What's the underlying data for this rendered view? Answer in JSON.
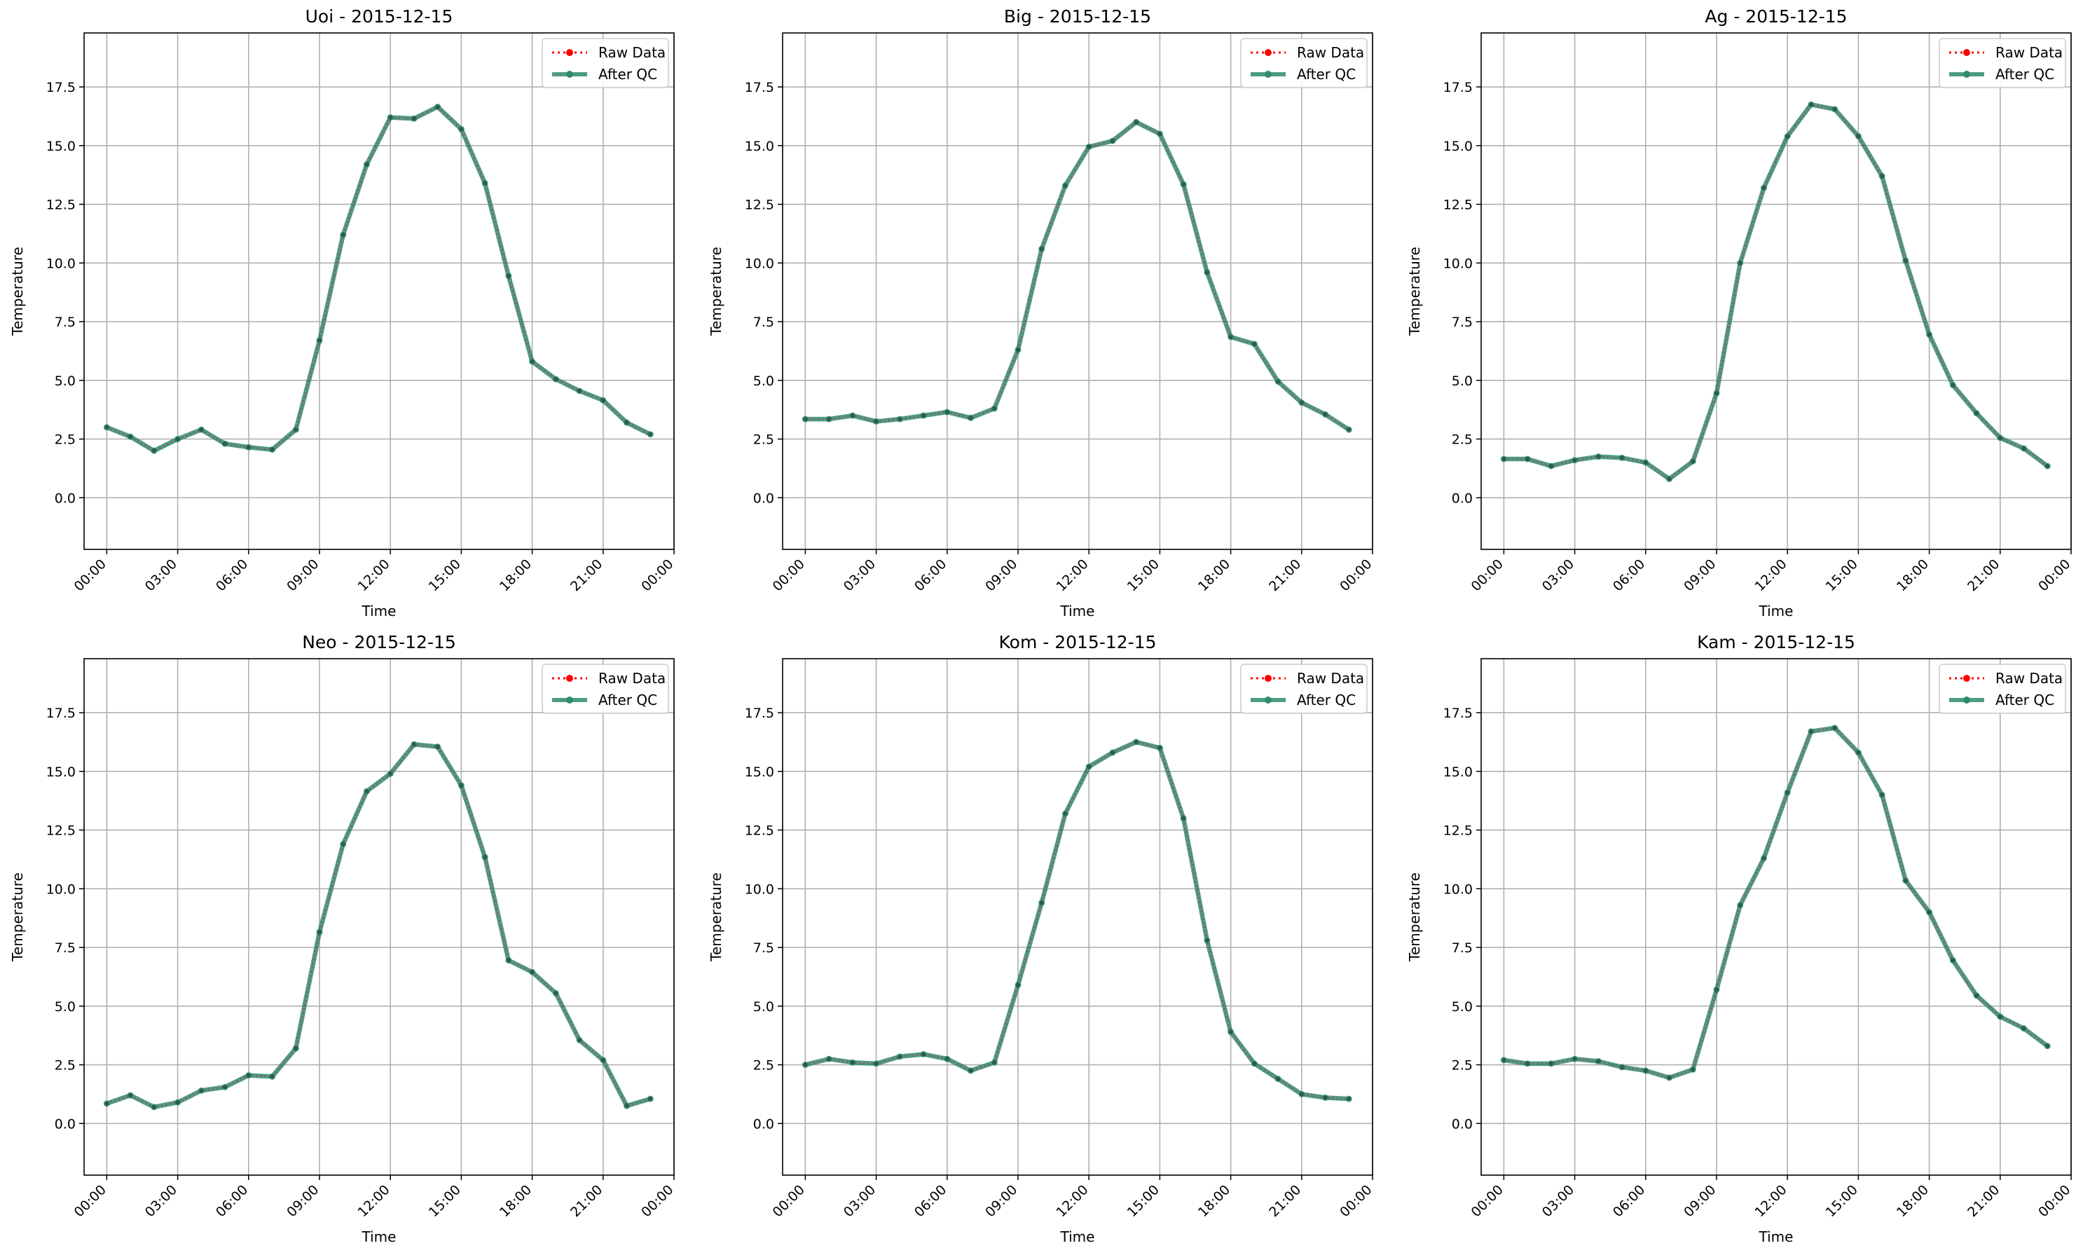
{
  "figure": {
    "colors": {
      "raw": "#ff0000",
      "qc": "#2e8b6e",
      "grid": "#b0b0b0"
    }
  },
  "chart_data": [
    {
      "type": "line",
      "title": "Uoi - 2015-12-15",
      "xlabel": "Time",
      "ylabel": "Temperature",
      "x": [
        "00:00",
        "01:00",
        "02:00",
        "03:00",
        "04:00",
        "05:00",
        "06:00",
        "07:00",
        "08:00",
        "09:00",
        "10:00",
        "11:00",
        "12:00",
        "13:00",
        "14:00",
        "15:00",
        "16:00",
        "17:00",
        "18:00",
        "19:00",
        "20:00",
        "21:00",
        "22:00",
        "23:00"
      ],
      "xticks": [
        "00:00",
        "03:00",
        "06:00",
        "09:00",
        "12:00",
        "15:00",
        "18:00",
        "21:00",
        "00:00"
      ],
      "yticks": [
        "0.0",
        "2.5",
        "5.0",
        "7.5",
        "10.0",
        "12.5",
        "15.0",
        "17.5"
      ],
      "ylim": [
        -2.2,
        19.8
      ],
      "grid": true,
      "legend": "top-right",
      "series": [
        {
          "name": "Raw Data",
          "values": [
            3.0,
            2.6,
            2.0,
            2.5,
            2.9,
            2.3,
            2.15,
            2.05,
            2.9,
            6.7,
            11.2,
            14.2,
            16.2,
            16.15,
            16.65,
            15.7,
            13.4,
            9.45,
            5.8,
            5.05,
            4.55,
            4.15,
            3.2,
            2.7
          ]
        },
        {
          "name": "After QC",
          "values": [
            3.0,
            2.6,
            2.0,
            2.5,
            2.9,
            2.3,
            2.15,
            2.05,
            2.9,
            6.7,
            11.2,
            14.2,
            16.2,
            16.15,
            16.65,
            15.7,
            13.4,
            9.45,
            5.8,
            5.05,
            4.55,
            4.15,
            3.2,
            2.7
          ]
        }
      ]
    },
    {
      "type": "line",
      "title": "Big - 2015-12-15",
      "xlabel": "Time",
      "ylabel": "Temperature",
      "x": [
        "00:00",
        "01:00",
        "02:00",
        "03:00",
        "04:00",
        "05:00",
        "06:00",
        "07:00",
        "08:00",
        "09:00",
        "10:00",
        "11:00",
        "12:00",
        "13:00",
        "14:00",
        "15:00",
        "16:00",
        "17:00",
        "18:00",
        "19:00",
        "20:00",
        "21:00",
        "22:00",
        "23:00"
      ],
      "xticks": [
        "00:00",
        "03:00",
        "06:00",
        "09:00",
        "12:00",
        "15:00",
        "18:00",
        "21:00",
        "00:00"
      ],
      "yticks": [
        "0.0",
        "2.5",
        "5.0",
        "7.5",
        "10.0",
        "12.5",
        "15.0",
        "17.5"
      ],
      "ylim": [
        -2.2,
        19.8
      ],
      "grid": true,
      "legend": "top-right",
      "series": [
        {
          "name": "Raw Data",
          "values": [
            3.35,
            3.35,
            3.5,
            3.25,
            3.35,
            3.5,
            3.65,
            3.4,
            3.8,
            6.3,
            10.6,
            13.3,
            14.95,
            15.2,
            16.0,
            15.5,
            13.35,
            9.6,
            6.85,
            6.55,
            4.95,
            4.05,
            3.55,
            2.9
          ]
        },
        {
          "name": "After QC",
          "values": [
            3.35,
            3.35,
            3.5,
            3.25,
            3.35,
            3.5,
            3.65,
            3.4,
            3.8,
            6.3,
            10.6,
            13.3,
            14.95,
            15.2,
            16.0,
            15.5,
            13.35,
            9.6,
            6.85,
            6.55,
            4.95,
            4.05,
            3.55,
            2.9
          ]
        }
      ]
    },
    {
      "type": "line",
      "title": "Ag - 2015-12-15",
      "xlabel": "Time",
      "ylabel": "Temperature",
      "x": [
        "00:00",
        "01:00",
        "02:00",
        "03:00",
        "04:00",
        "05:00",
        "06:00",
        "07:00",
        "08:00",
        "09:00",
        "10:00",
        "11:00",
        "12:00",
        "13:00",
        "14:00",
        "15:00",
        "16:00",
        "17:00",
        "18:00",
        "19:00",
        "20:00",
        "21:00",
        "22:00",
        "23:00"
      ],
      "xticks": [
        "00:00",
        "03:00",
        "06:00",
        "09:00",
        "12:00",
        "15:00",
        "18:00",
        "21:00",
        "00:00"
      ],
      "yticks": [
        "0.0",
        "2.5",
        "5.0",
        "7.5",
        "10.0",
        "12.5",
        "15.0",
        "17.5"
      ],
      "ylim": [
        -2.2,
        19.8
      ],
      "grid": true,
      "legend": "top-right",
      "series": [
        {
          "name": "Raw Data",
          "values": [
            1.65,
            1.65,
            1.35,
            1.6,
            1.75,
            1.7,
            1.5,
            0.8,
            1.55,
            4.45,
            10.0,
            13.2,
            15.4,
            16.75,
            16.55,
            15.4,
            13.7,
            10.1,
            6.95,
            4.8,
            3.6,
            2.55,
            2.1,
            1.35
          ]
        },
        {
          "name": "After QC",
          "values": [
            1.65,
            1.65,
            1.35,
            1.6,
            1.75,
            1.7,
            1.5,
            0.8,
            1.55,
            4.45,
            10.0,
            13.2,
            15.4,
            16.75,
            16.55,
            15.4,
            13.7,
            10.1,
            6.95,
            4.8,
            3.6,
            2.55,
            2.1,
            1.35
          ]
        }
      ]
    },
    {
      "type": "line",
      "title": "Neo - 2015-12-15",
      "xlabel": "Time",
      "ylabel": "Temperature",
      "x": [
        "00:00",
        "01:00",
        "02:00",
        "03:00",
        "04:00",
        "05:00",
        "06:00",
        "07:00",
        "08:00",
        "09:00",
        "10:00",
        "11:00",
        "12:00",
        "13:00",
        "14:00",
        "15:00",
        "16:00",
        "17:00",
        "18:00",
        "19:00",
        "20:00",
        "21:00",
        "22:00",
        "23:00"
      ],
      "xticks": [
        "00:00",
        "03:00",
        "06:00",
        "09:00",
        "12:00",
        "15:00",
        "18:00",
        "21:00",
        "00:00"
      ],
      "yticks": [
        "0.0",
        "2.5",
        "5.0",
        "7.5",
        "10.0",
        "12.5",
        "15.0",
        "17.5"
      ],
      "ylim": [
        -2.2,
        19.8
      ],
      "grid": true,
      "legend": "top-right",
      "series": [
        {
          "name": "Raw Data",
          "values": [
            0.85,
            1.2,
            0.7,
            0.9,
            1.4,
            1.55,
            2.05,
            2.0,
            3.2,
            8.15,
            11.9,
            14.15,
            14.9,
            16.15,
            16.05,
            14.4,
            11.35,
            6.95,
            6.45,
            5.55,
            3.55,
            2.7,
            0.75,
            1.05
          ]
        },
        {
          "name": "After QC",
          "values": [
            0.85,
            1.2,
            0.7,
            0.9,
            1.4,
            1.55,
            2.05,
            2.0,
            3.2,
            8.15,
            11.9,
            14.15,
            14.9,
            16.15,
            16.05,
            14.4,
            11.35,
            6.95,
            6.45,
            5.55,
            3.55,
            2.7,
            0.75,
            1.05
          ]
        }
      ]
    },
    {
      "type": "line",
      "title": "Kom - 2015-12-15",
      "xlabel": "Time",
      "ylabel": "Temperature",
      "x": [
        "00:00",
        "01:00",
        "02:00",
        "03:00",
        "04:00",
        "05:00",
        "06:00",
        "07:00",
        "08:00",
        "09:00",
        "10:00",
        "11:00",
        "12:00",
        "13:00",
        "14:00",
        "15:00",
        "16:00",
        "17:00",
        "18:00",
        "19:00",
        "20:00",
        "21:00",
        "22:00",
        "23:00"
      ],
      "xticks": [
        "00:00",
        "03:00",
        "06:00",
        "09:00",
        "12:00",
        "15:00",
        "18:00",
        "21:00",
        "00:00"
      ],
      "yticks": [
        "0.0",
        "2.5",
        "5.0",
        "7.5",
        "10.0",
        "12.5",
        "15.0",
        "17.5"
      ],
      "ylim": [
        -2.2,
        19.8
      ],
      "grid": true,
      "legend": "top-right",
      "series": [
        {
          "name": "Raw Data",
          "values": [
            2.5,
            2.75,
            2.6,
            2.55,
            2.85,
            2.95,
            2.75,
            2.25,
            2.6,
            5.9,
            9.4,
            13.2,
            15.2,
            15.8,
            16.25,
            16.0,
            13.0,
            7.8,
            3.9,
            2.55,
            1.9,
            1.25,
            1.1,
            1.05
          ]
        },
        {
          "name": "After QC",
          "values": [
            2.5,
            2.75,
            2.6,
            2.55,
            2.85,
            2.95,
            2.75,
            2.25,
            2.6,
            5.9,
            9.4,
            13.2,
            15.2,
            15.8,
            16.25,
            16.0,
            13.0,
            7.8,
            3.9,
            2.55,
            1.9,
            1.25,
            1.1,
            1.05
          ]
        }
      ]
    },
    {
      "type": "line",
      "title": "Kam - 2015-12-15",
      "xlabel": "Time",
      "ylabel": "Temperature",
      "x": [
        "00:00",
        "01:00",
        "02:00",
        "03:00",
        "04:00",
        "05:00",
        "06:00",
        "07:00",
        "08:00",
        "09:00",
        "10:00",
        "11:00",
        "12:00",
        "13:00",
        "14:00",
        "15:00",
        "16:00",
        "17:00",
        "18:00",
        "19:00",
        "20:00",
        "21:00",
        "22:00",
        "23:00"
      ],
      "xticks": [
        "00:00",
        "03:00",
        "06:00",
        "09:00",
        "12:00",
        "15:00",
        "18:00",
        "21:00",
        "00:00"
      ],
      "yticks": [
        "0.0",
        "2.5",
        "5.0",
        "7.5",
        "10.0",
        "12.5",
        "15.0",
        "17.5"
      ],
      "ylim": [
        -2.2,
        19.8
      ],
      "grid": true,
      "legend": "top-right",
      "series": [
        {
          "name": "Raw Data",
          "values": [
            2.7,
            2.55,
            2.55,
            2.75,
            2.65,
            2.4,
            2.25,
            1.95,
            2.3,
            5.7,
            9.3,
            11.3,
            14.1,
            16.7,
            16.85,
            15.8,
            14.0,
            10.35,
            9.0,
            6.95,
            5.45,
            4.55,
            4.05,
            3.3
          ]
        },
        {
          "name": "After QC",
          "values": [
            2.7,
            2.55,
            2.55,
            2.75,
            2.65,
            2.4,
            2.25,
            1.95,
            2.3,
            5.7,
            9.3,
            11.3,
            14.1,
            16.7,
            16.85,
            15.8,
            14.0,
            10.35,
            9.0,
            6.95,
            5.45,
            4.55,
            4.05,
            3.3
          ]
        }
      ]
    }
  ]
}
